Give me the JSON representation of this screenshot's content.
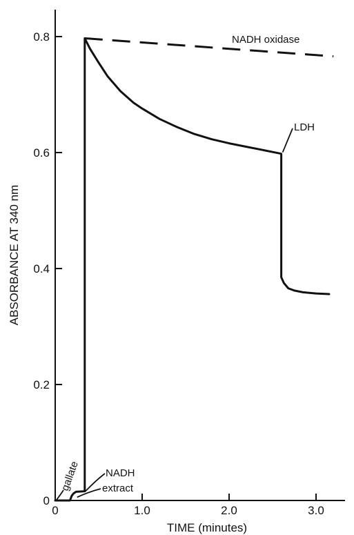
{
  "chart_data": {
    "type": "line",
    "xlabel": "TIME (minutes)",
    "ylabel": "ABSORBANCE AT 340 nm",
    "xlim": [
      0,
      3.3
    ],
    "ylim": [
      0,
      0.85
    ],
    "xticks": [
      0,
      1.0,
      2.0,
      3.0
    ],
    "xtick_labels": [
      "0",
      "1.0",
      "2.0",
      "3.0"
    ],
    "yticks": [
      0,
      0.2,
      0.4,
      0.6,
      0.8
    ],
    "ytick_labels": [
      "0",
      "0.2",
      "0.4",
      "0.6",
      "0.8"
    ],
    "grid": false,
    "legend": "none",
    "series": [
      {
        "name": "LDH",
        "style": "solid",
        "x": [
          0,
          0.17,
          0.19,
          0.21,
          0.24,
          0.34,
          0.34,
          0.4,
          0.5,
          0.6,
          0.75,
          0.9,
          1.0,
          1.2,
          1.4,
          1.6,
          1.8,
          2.0,
          2.2,
          2.4,
          2.6,
          2.6,
          2.63,
          2.68,
          2.75,
          2.85,
          3.0,
          3.15
        ],
        "y": [
          0,
          0,
          0.008,
          0.012,
          0.015,
          0.016,
          0.797,
          0.779,
          0.755,
          0.732,
          0.706,
          0.686,
          0.676,
          0.658,
          0.644,
          0.632,
          0.623,
          0.616,
          0.61,
          0.604,
          0.598,
          0.385,
          0.375,
          0.366,
          0.362,
          0.359,
          0.357,
          0.356
        ]
      },
      {
        "name": "NADH oxidase",
        "style": "dashed",
        "x": [
          0.34,
          3.2
        ],
        "y": [
          0.797,
          0.766
        ]
      }
    ],
    "annotations": [
      {
        "text": "NADH oxidase",
        "target": "NADH oxidase"
      },
      {
        "text": "LDH",
        "target": "LDH",
        "x": 2.6,
        "y": 0.598
      },
      {
        "text": "NADH",
        "x": 0.34,
        "y": 0.016
      },
      {
        "text": "extract",
        "x": 0.22,
        "y": 0.008
      },
      {
        "text": "gallate",
        "x": 0.02,
        "y": 0.0
      }
    ]
  }
}
